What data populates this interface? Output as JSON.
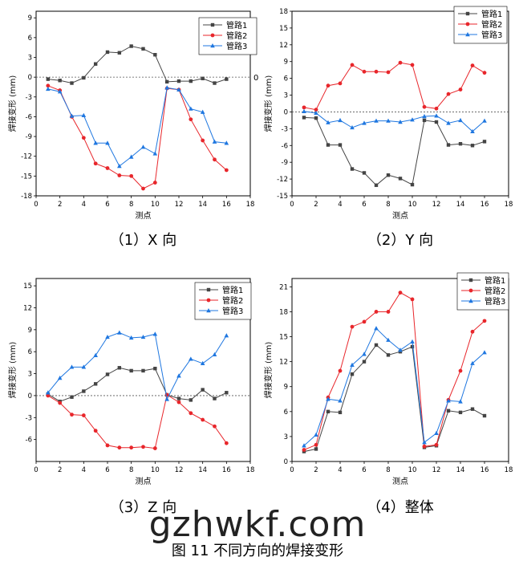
{
  "figure_caption": "图 11  不同方向的焊接变形",
  "watermark": "gzhwkf.com",
  "chart_data": [
    {
      "type": "line",
      "panel_label": "（1）X 向",
      "xlabel": "测点",
      "ylabel": "焊接变形  (mm)",
      "xlim": [
        0,
        18
      ],
      "ylim": [
        -18,
        10
      ],
      "xticks": [
        0,
        2,
        4,
        6,
        8,
        10,
        12,
        14,
        16,
        18
      ],
      "yticks": [
        -18,
        -15,
        -12,
        -9,
        -6,
        -3,
        0,
        3,
        6,
        9
      ],
      "zero_line": true,
      "zero_label": "0",
      "x": [
        1,
        2,
        3,
        4,
        5,
        6,
        7,
        8,
        9,
        10,
        11,
        12,
        13,
        14,
        15,
        16
      ],
      "series": [
        {
          "name": "管路1",
          "color": "#444444",
          "marker": "square",
          "values": [
            -0.3,
            -0.5,
            -0.9,
            -0.1,
            2.0,
            3.8,
            3.7,
            4.7,
            4.3,
            3.4,
            -0.7,
            -0.6,
            -0.6,
            -0.2,
            -0.9,
            -0.3
          ]
        },
        {
          "name": "管路2",
          "color": "#e8262b",
          "marker": "circle",
          "values": [
            -1.3,
            -2.0,
            -6.0,
            -9.2,
            -13.1,
            -13.8,
            -14.9,
            -15.0,
            -16.9,
            -16.0,
            -1.7,
            -1.9,
            -6.4,
            -9.6,
            -12.5,
            -14.1
          ]
        },
        {
          "name": "管路3",
          "color": "#1f77e0",
          "marker": "triangle",
          "values": [
            -1.8,
            -2.2,
            -5.9,
            -5.8,
            -10.0,
            -10.0,
            -13.5,
            -12.1,
            -10.6,
            -11.6,
            -1.6,
            -1.9,
            -4.8,
            -5.3,
            -9.8,
            -10.0
          ]
        }
      ]
    },
    {
      "type": "line",
      "panel_label": "（2）Y 向",
      "xlabel": "测点",
      "ylabel": "焊接变形  (mm)",
      "xlim": [
        0,
        18
      ],
      "ylim": [
        -15,
        18
      ],
      "xticks": [
        0,
        2,
        4,
        6,
        8,
        10,
        12,
        14,
        16,
        18
      ],
      "yticks": [
        -15,
        -12,
        -9,
        -6,
        -3,
        0,
        3,
        6,
        9,
        12,
        15,
        18
      ],
      "zero_line": true,
      "x": [
        1,
        2,
        3,
        4,
        5,
        6,
        7,
        8,
        9,
        10,
        11,
        12,
        13,
        14,
        15,
        16
      ],
      "series": [
        {
          "name": "管路1",
          "color": "#444444",
          "marker": "square",
          "values": [
            -1.0,
            -1.1,
            -5.9,
            -5.9,
            -10.2,
            -10.9,
            -13.1,
            -11.3,
            -11.9,
            -13.0,
            -1.5,
            -1.8,
            -5.9,
            -5.7,
            -6.0,
            -5.3
          ]
        },
        {
          "name": "管路2",
          "color": "#e8262b",
          "marker": "circle",
          "values": [
            0.8,
            0.4,
            4.7,
            5.1,
            8.4,
            7.2,
            7.2,
            7.1,
            8.8,
            8.4,
            0.9,
            0.6,
            3.2,
            4.0,
            8.3,
            7.0
          ]
        },
        {
          "name": "管路3",
          "color": "#1f77e0",
          "marker": "triangle",
          "values": [
            0.1,
            -0.2,
            -1.9,
            -1.5,
            -2.8,
            -2.0,
            -1.6,
            -1.6,
            -1.8,
            -1.4,
            -0.8,
            -0.7,
            -2.0,
            -1.5,
            -3.5,
            -1.6
          ]
        }
      ]
    },
    {
      "type": "line",
      "panel_label": "（3）Z 向",
      "xlabel": "测点",
      "ylabel": "焊接变形  (mm)",
      "xlim": [
        0,
        18
      ],
      "ylim": [
        -9,
        16
      ],
      "xticks": [
        0,
        2,
        4,
        6,
        8,
        10,
        12,
        14,
        16,
        18
      ],
      "yticks": [
        -6,
        -3,
        0,
        3,
        6,
        9,
        12,
        15
      ],
      "zero_line": true,
      "x": [
        1,
        2,
        3,
        4,
        5,
        6,
        7,
        8,
        9,
        10,
        11,
        12,
        13,
        14,
        15,
        16
      ],
      "series": [
        {
          "name": "管路1",
          "color": "#444444",
          "marker": "square",
          "values": [
            0.2,
            -0.8,
            -0.2,
            0.6,
            1.6,
            2.9,
            3.8,
            3.4,
            3.4,
            3.7,
            0.1,
            -0.4,
            -0.6,
            0.8,
            -0.4,
            0.4
          ]
        },
        {
          "name": "管路2",
          "color": "#e8262b",
          "marker": "circle",
          "values": [
            0.0,
            -1.0,
            -2.6,
            -2.7,
            -4.8,
            -6.8,
            -7.1,
            -7.1,
            -7.0,
            -7.2,
            0.1,
            -0.9,
            -2.4,
            -3.3,
            -4.2,
            -6.5
          ]
        },
        {
          "name": "管路3",
          "color": "#1f77e0",
          "marker": "triangle",
          "values": [
            0.4,
            2.4,
            3.9,
            3.9,
            5.5,
            8.0,
            8.6,
            7.9,
            8.0,
            8.4,
            -0.5,
            2.7,
            5.0,
            4.4,
            5.6,
            8.2
          ]
        }
      ]
    },
    {
      "type": "line",
      "panel_label": "（4）整体",
      "xlabel": "测点",
      "ylabel": "焊接变形  (mm)",
      "xlim": [
        0,
        18
      ],
      "ylim": [
        0,
        22
      ],
      "xticks": [
        0,
        2,
        4,
        6,
        8,
        10,
        12,
        14,
        16,
        18
      ],
      "yticks": [
        0,
        3,
        6,
        9,
        12,
        15,
        18,
        21
      ],
      "zero_line": false,
      "x": [
        1,
        2,
        3,
        4,
        5,
        6,
        7,
        8,
        9,
        10,
        11,
        12,
        13,
        14,
        15,
        16
      ],
      "series": [
        {
          "name": "管路1",
          "color": "#444444",
          "marker": "square",
          "values": [
            1.2,
            1.5,
            6.0,
            5.9,
            10.5,
            12.0,
            14.0,
            12.8,
            13.2,
            13.8,
            1.7,
            1.9,
            6.1,
            5.9,
            6.3,
            5.5
          ]
        },
        {
          "name": "管路2",
          "color": "#e8262b",
          "marker": "circle",
          "values": [
            1.4,
            2.0,
            7.7,
            10.9,
            16.2,
            16.8,
            18.0,
            18.0,
            20.3,
            19.5,
            1.8,
            2.0,
            7.4,
            10.9,
            15.6,
            16.9
          ]
        },
        {
          "name": "管路3",
          "color": "#1f77e0",
          "marker": "triangle",
          "values": [
            1.9,
            3.2,
            7.5,
            7.3,
            11.6,
            12.9,
            16.0,
            14.6,
            13.4,
            14.4,
            2.3,
            3.4,
            7.3,
            7.2,
            11.8,
            13.1
          ]
        }
      ]
    }
  ]
}
